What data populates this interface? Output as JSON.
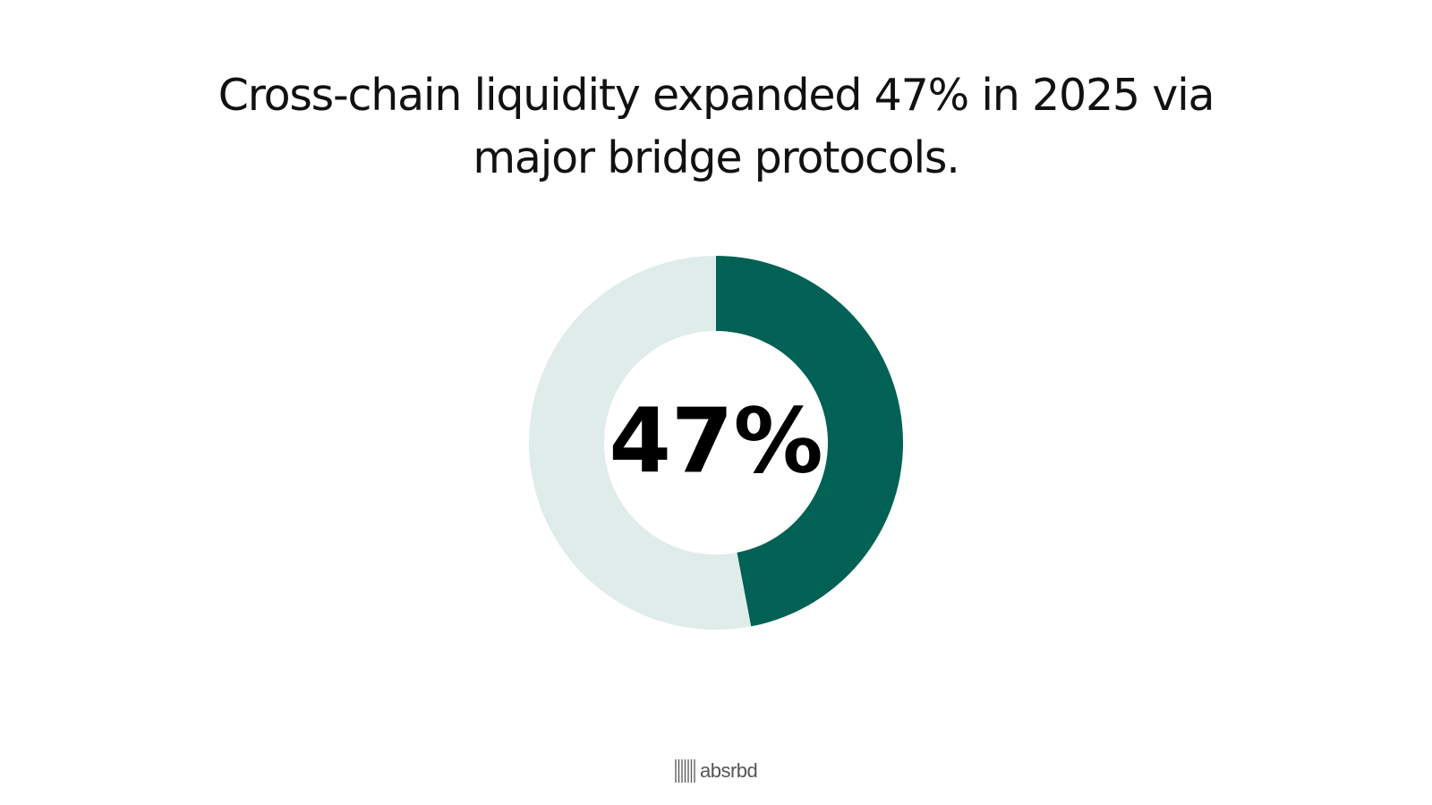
{
  "chart_data": {
    "type": "donut",
    "title": "Cross-chain liquidity expanded 47% in 2025 via major bridge protocols.",
    "values": [
      47,
      53
    ],
    "value_labels": [
      "47%",
      null
    ],
    "colors": [
      "#006154",
      "#e0ecea"
    ]
  },
  "footer": {
    "brand": "absrbd"
  }
}
